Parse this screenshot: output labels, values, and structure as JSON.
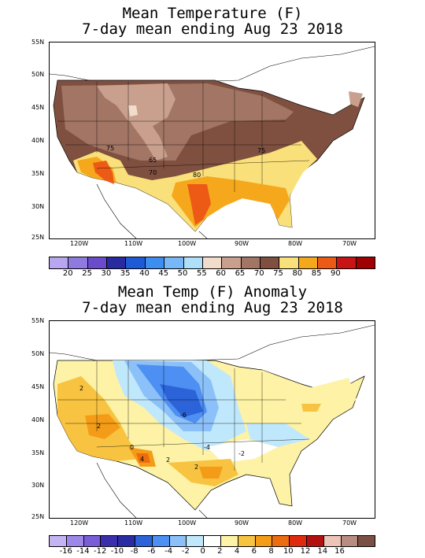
{
  "panel1": {
    "title_line1": "Mean Temperature (F)",
    "title_line2": "7-day mean ending Aug 23 2018",
    "lat_labels": [
      "55N",
      "50N",
      "45N",
      "40N",
      "35N",
      "30N",
      "25N"
    ],
    "lon_labels": [
      "120W",
      "110W",
      "100W",
      "90W",
      "80W",
      "70W"
    ],
    "contour_labels": [
      "75",
      "65",
      "70",
      "80",
      "75"
    ],
    "legend_labels": [
      "20",
      "25",
      "30",
      "35",
      "40",
      "45",
      "50",
      "55",
      "60",
      "65",
      "70",
      "75",
      "80",
      "85",
      "90"
    ],
    "legend_colors": [
      "#b9a6f0",
      "#8f7be0",
      "#6a4bcc",
      "#2a2aa0",
      "#1e5ad6",
      "#3c8ef0",
      "#78b8f8",
      "#aee0fa",
      "#f2dccc",
      "#c9a08e",
      "#a27564",
      "#7f5040",
      "#f9e07a",
      "#f6a81c",
      "#ec5a16",
      "#c81414",
      "#a00000"
    ]
  },
  "panel2": {
    "title_line1": "Mean Temp (F) Anomaly",
    "title_line2": "7-day mean ending Aug 23 2018",
    "lat_labels": [
      "55N",
      "50N",
      "45N",
      "40N",
      "35N",
      "30N",
      "25N"
    ],
    "lon_labels": [
      "120W",
      "110W",
      "100W",
      "90W",
      "80W",
      "70W"
    ],
    "contour_labels": [
      "2",
      "2",
      "-6",
      "-4",
      "-2",
      "2",
      "2",
      "4",
      "0"
    ],
    "legend_labels": [
      "-16",
      "-14",
      "-12",
      "-10",
      "-8",
      "-6",
      "-4",
      "-2",
      "0",
      "2",
      "4",
      "6",
      "8",
      "10",
      "12",
      "14",
      "16"
    ],
    "legend_colors": [
      "#c4b4f4",
      "#9d88ea",
      "#7a5ed8",
      "#3b2fae",
      "#2b2ba4",
      "#2c63d8",
      "#4d8ff2",
      "#8cc0f8",
      "#c0e8fc",
      "#ffffff",
      "#fdf2a6",
      "#f8c340",
      "#f49c18",
      "#ec6c10",
      "#e02a10",
      "#b41010",
      "#ecc4b8",
      "#b88c80",
      "#7a5044"
    ]
  }
}
